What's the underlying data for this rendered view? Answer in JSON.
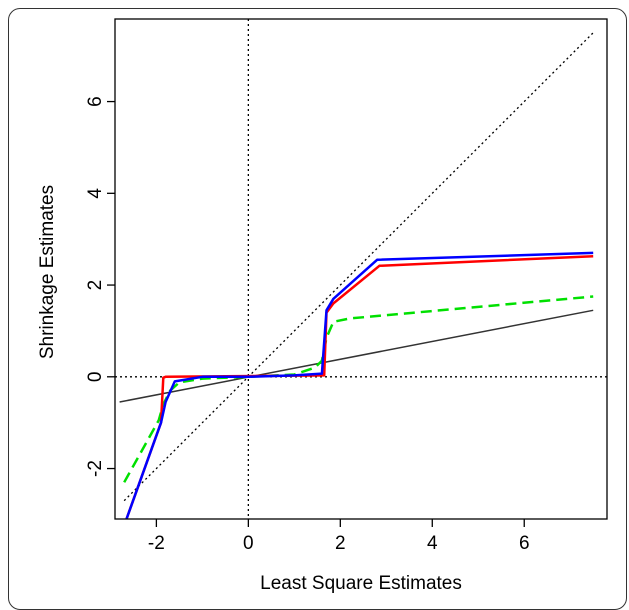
{
  "chart_data": {
    "type": "line",
    "title": "",
    "xlabel": "Least Square Estimates",
    "ylabel": "Shrinkage Estimates",
    "xlim": [
      -2.9,
      7.8
    ],
    "ylim": [
      -3.1,
      7.8
    ],
    "xticks": [
      -2,
      0,
      2,
      4,
      6
    ],
    "yticks": [
      -2,
      0,
      2,
      4,
      6
    ],
    "x_tick_labels": [
      "-2",
      "0",
      "2",
      "4",
      "6"
    ],
    "y_tick_labels": [
      "-2",
      "0",
      "2",
      "4",
      "6"
    ],
    "grid": false,
    "legend": "none",
    "reference_lines": [
      {
        "kind": "vertical",
        "x": 0,
        "style": "dotted",
        "color": "#000000"
      },
      {
        "kind": "horizontal",
        "y": 0,
        "style": "dotted",
        "color": "#000000"
      },
      {
        "kind": "identity",
        "points": [
          [
            -2.7,
            -2.7
          ],
          [
            7.5,
            7.5
          ]
        ],
        "style": "dotted",
        "color": "#000000"
      }
    ],
    "series": [
      {
        "color": "#333333",
        "style": "solid",
        "width": 1.5,
        "points": [
          [
            -2.8,
            -0.55
          ],
          [
            7.5,
            1.45
          ]
        ]
      },
      {
        "color": "#00e000",
        "style": "dashed",
        "width": 2.5,
        "points": [
          [
            -2.7,
            -2.3
          ],
          [
            -1.95,
            -0.95
          ],
          [
            -1.85,
            -0.6
          ],
          [
            -1.7,
            -0.3
          ],
          [
            -1.5,
            -0.12
          ],
          [
            -1.0,
            -0.04
          ],
          [
            0,
            0
          ],
          [
            1.0,
            0.05
          ],
          [
            1.45,
            0.2
          ],
          [
            1.6,
            0.35
          ],
          [
            1.7,
            0.85
          ],
          [
            1.85,
            1.2
          ],
          [
            2.2,
            1.27
          ],
          [
            7.5,
            1.75
          ]
        ]
      },
      {
        "color": "#ff0000",
        "style": "solid",
        "width": 2.5,
        "points": [
          [
            -2.65,
            -3.1
          ],
          [
            -1.9,
            -1.0
          ],
          [
            -1.85,
            -0.02
          ],
          [
            -1.8,
            0
          ],
          [
            1.65,
            0.03
          ],
          [
            1.7,
            1.4
          ],
          [
            1.85,
            1.6
          ],
          [
            2.85,
            2.42
          ],
          [
            7.5,
            2.63
          ]
        ]
      },
      {
        "color": "#0000ff",
        "style": "solid",
        "width": 2.5,
        "points": [
          [
            -2.65,
            -3.1
          ],
          [
            -1.9,
            -1.0
          ],
          [
            -1.8,
            -0.55
          ],
          [
            -1.6,
            -0.1
          ],
          [
            -1.0,
            0
          ],
          [
            0,
            0
          ],
          [
            1.0,
            0.03
          ],
          [
            1.6,
            0.07
          ],
          [
            1.7,
            1.45
          ],
          [
            1.85,
            1.7
          ],
          [
            2.8,
            2.55
          ],
          [
            7.5,
            2.7
          ]
        ]
      }
    ]
  }
}
